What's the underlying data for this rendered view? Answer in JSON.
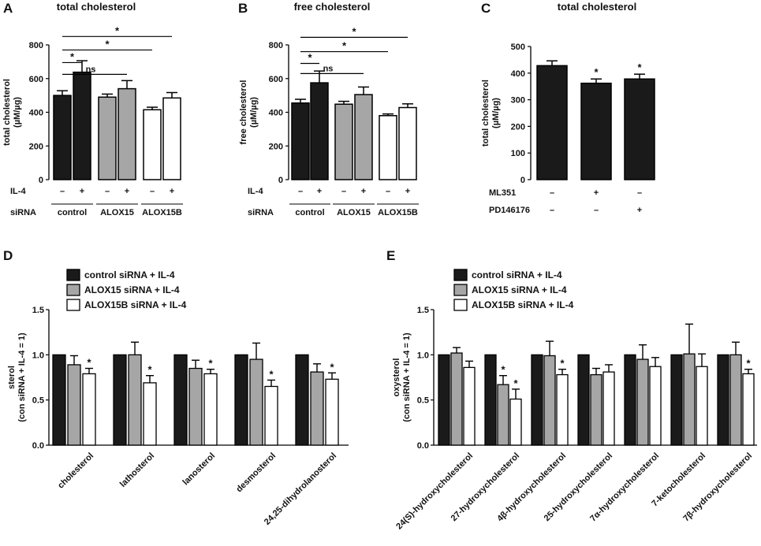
{
  "colors": {
    "control": "#1a1a1a",
    "alox15": "#a6a6a6",
    "alox15b": "#ffffff",
    "axis": "#000000"
  },
  "chart_data": [
    {
      "id": "A",
      "type": "bar",
      "title": "total cholesterol",
      "ylabel": "total cholesterol (µM/µg)",
      "ylim": [
        0,
        800
      ],
      "yticks": [
        "0",
        "200",
        "400",
        "600",
        "800"
      ],
      "rows": [
        {
          "label": "IL-4",
          "values": [
            "–",
            "+",
            "–",
            "+",
            "–",
            "+"
          ]
        },
        {
          "label": "siRNA",
          "groups": [
            "control",
            "ALOX15",
            "ALOX15B"
          ]
        }
      ],
      "bars": [
        {
          "value": 500,
          "err": 28,
          "fill": "control"
        },
        {
          "value": 638,
          "err": 68,
          "fill": "control"
        },
        {
          "value": 490,
          "err": 18,
          "fill": "alox15"
        },
        {
          "value": 540,
          "err": 48,
          "fill": "alox15"
        },
        {
          "value": 415,
          "err": 15,
          "fill": "alox15b"
        },
        {
          "value": 485,
          "err": 32,
          "fill": "alox15b"
        }
      ],
      "comparisons": [
        {
          "from": 0,
          "to": 1,
          "level": 695,
          "label": "*"
        },
        {
          "from": 0,
          "to": 3,
          "level": 625,
          "label": "ns"
        },
        {
          "from": 0,
          "to": 4,
          "level": 770,
          "label": "*"
        },
        {
          "from": 0,
          "to": 5,
          "level": 850,
          "label": "*"
        }
      ]
    },
    {
      "id": "B",
      "type": "bar",
      "title": "free cholesterol",
      "ylabel": "free cholesterol (µM/µg)",
      "ylim": [
        0,
        800
      ],
      "yticks": [
        "0",
        "200",
        "400",
        "600",
        "800"
      ],
      "rows": [
        {
          "label": "IL-4",
          "values": [
            "–",
            "+",
            "–",
            "+",
            "–",
            "+"
          ]
        },
        {
          "label": "siRNA",
          "groups": [
            "control",
            "ALOX15",
            "ALOX15B"
          ]
        }
      ],
      "bars": [
        {
          "value": 455,
          "err": 22,
          "fill": "control"
        },
        {
          "value": 575,
          "err": 70,
          "fill": "control"
        },
        {
          "value": 448,
          "err": 17,
          "fill": "alox15"
        },
        {
          "value": 505,
          "err": 45,
          "fill": "alox15"
        },
        {
          "value": 380,
          "err": 10,
          "fill": "alox15b"
        },
        {
          "value": 428,
          "err": 22,
          "fill": "alox15b"
        }
      ],
      "comparisons": [
        {
          "from": 0,
          "to": 1,
          "level": 690,
          "label": "*"
        },
        {
          "from": 0,
          "to": 3,
          "level": 630,
          "label": "ns"
        },
        {
          "from": 0,
          "to": 4,
          "level": 760,
          "label": "*"
        },
        {
          "from": 0,
          "to": 5,
          "level": 845,
          "label": "*"
        }
      ]
    },
    {
      "id": "C",
      "type": "bar",
      "title": "total cholesterol",
      "ylabel": "total cholesterol (µM/µg)",
      "ylim": [
        0,
        500
      ],
      "yticks": [
        "0",
        "100",
        "200",
        "300",
        "400",
        "500"
      ],
      "rows": [
        {
          "label": "ML351",
          "values": [
            "–",
            "+",
            "–"
          ]
        },
        {
          "label": "PD146176",
          "values": [
            "–",
            "–",
            "+"
          ]
        }
      ],
      "bars": [
        {
          "value": 428,
          "err": 18,
          "fill": "control",
          "label": ""
        },
        {
          "value": 362,
          "err": 16,
          "fill": "control",
          "label": "*"
        },
        {
          "value": 378,
          "err": 18,
          "fill": "control",
          "label": "*"
        }
      ]
    },
    {
      "id": "D",
      "type": "bar",
      "ylabel": "sterol (con siRNA + IL-4 = 1)",
      "ylim": [
        0,
        1.5
      ],
      "yticks": [
        "0.0",
        "0.5",
        "1.0",
        "1.5"
      ],
      "legend": [
        "control siRNA + IL-4",
        "ALOX15 siRNA + IL-4",
        "ALOX15B siRNA + IL-4"
      ],
      "categories": [
        "cholesterol",
        "lathosterol",
        "lanosterol",
        "desmosterol",
        "24,25-dihydrolanosterol"
      ],
      "series": [
        {
          "name": "control siRNA + IL-4",
          "fill": "control",
          "values": [
            1,
            1,
            1,
            1,
            1
          ],
          "errors": [
            0,
            0,
            0,
            0,
            0
          ],
          "stars": [
            "",
            "",
            "",
            "",
            ""
          ]
        },
        {
          "name": "ALOX15 siRNA + IL-4",
          "fill": "alox15",
          "values": [
            0.89,
            1.0,
            0.85,
            0.95,
            0.81
          ],
          "errors": [
            0.1,
            0.14,
            0.09,
            0.18,
            0.09
          ],
          "stars": [
            "",
            "",
            "",
            "",
            ""
          ]
        },
        {
          "name": "ALOX15B siRNA + IL-4",
          "fill": "alox15b",
          "values": [
            0.79,
            0.69,
            0.79,
            0.65,
            0.73
          ],
          "errors": [
            0.06,
            0.08,
            0.05,
            0.07,
            0.07
          ],
          "stars": [
            "*",
            "*",
            "*",
            "*",
            "*"
          ]
        }
      ]
    },
    {
      "id": "E",
      "type": "bar",
      "ylabel": "oxysterol (con siRNA + IL-4 = 1)",
      "ylim": [
        0,
        1.5
      ],
      "yticks": [
        "0.0",
        "0.5",
        "1.0",
        "1.5"
      ],
      "legend": [
        "control siRNA + IL-4",
        "ALOX15 siRNA + IL-4",
        "ALOX15B siRNA + IL-4"
      ],
      "categories": [
        "24(S)-hydroxycholesterol",
        "27-hydroxycholesterol",
        "4β-hydroxycholesterol",
        "25-hydroxycholesterol",
        "7α-hydroxycholesterol",
        "7-ketocholesterol",
        "7β-hydroxycholesterol"
      ],
      "series": [
        {
          "name": "control siRNA + IL-4",
          "fill": "control",
          "values": [
            1,
            1,
            1,
            1,
            1,
            1,
            1
          ],
          "errors": [
            0,
            0,
            0,
            0,
            0,
            0,
            0
          ],
          "stars": [
            "",
            "",
            "",
            "",
            "",
            "",
            ""
          ]
        },
        {
          "name": "ALOX15 siRNA + IL-4",
          "fill": "alox15",
          "values": [
            1.02,
            0.67,
            0.99,
            0.78,
            0.95,
            1.01,
            1.0
          ],
          "errors": [
            0.06,
            0.1,
            0.16,
            0.07,
            0.16,
            0.33,
            0.14
          ],
          "stars": [
            "",
            "*",
            "",
            "",
            "",
            "",
            ""
          ]
        },
        {
          "name": "ALOX15B siRNA + IL-4",
          "fill": "alox15b",
          "values": [
            0.86,
            0.51,
            0.78,
            0.81,
            0.87,
            0.87,
            0.79
          ],
          "errors": [
            0.07,
            0.11,
            0.06,
            0.08,
            0.1,
            0.14,
            0.05
          ],
          "stars": [
            "",
            "*",
            "*",
            "",
            "",
            "",
            "*"
          ]
        }
      ]
    }
  ]
}
